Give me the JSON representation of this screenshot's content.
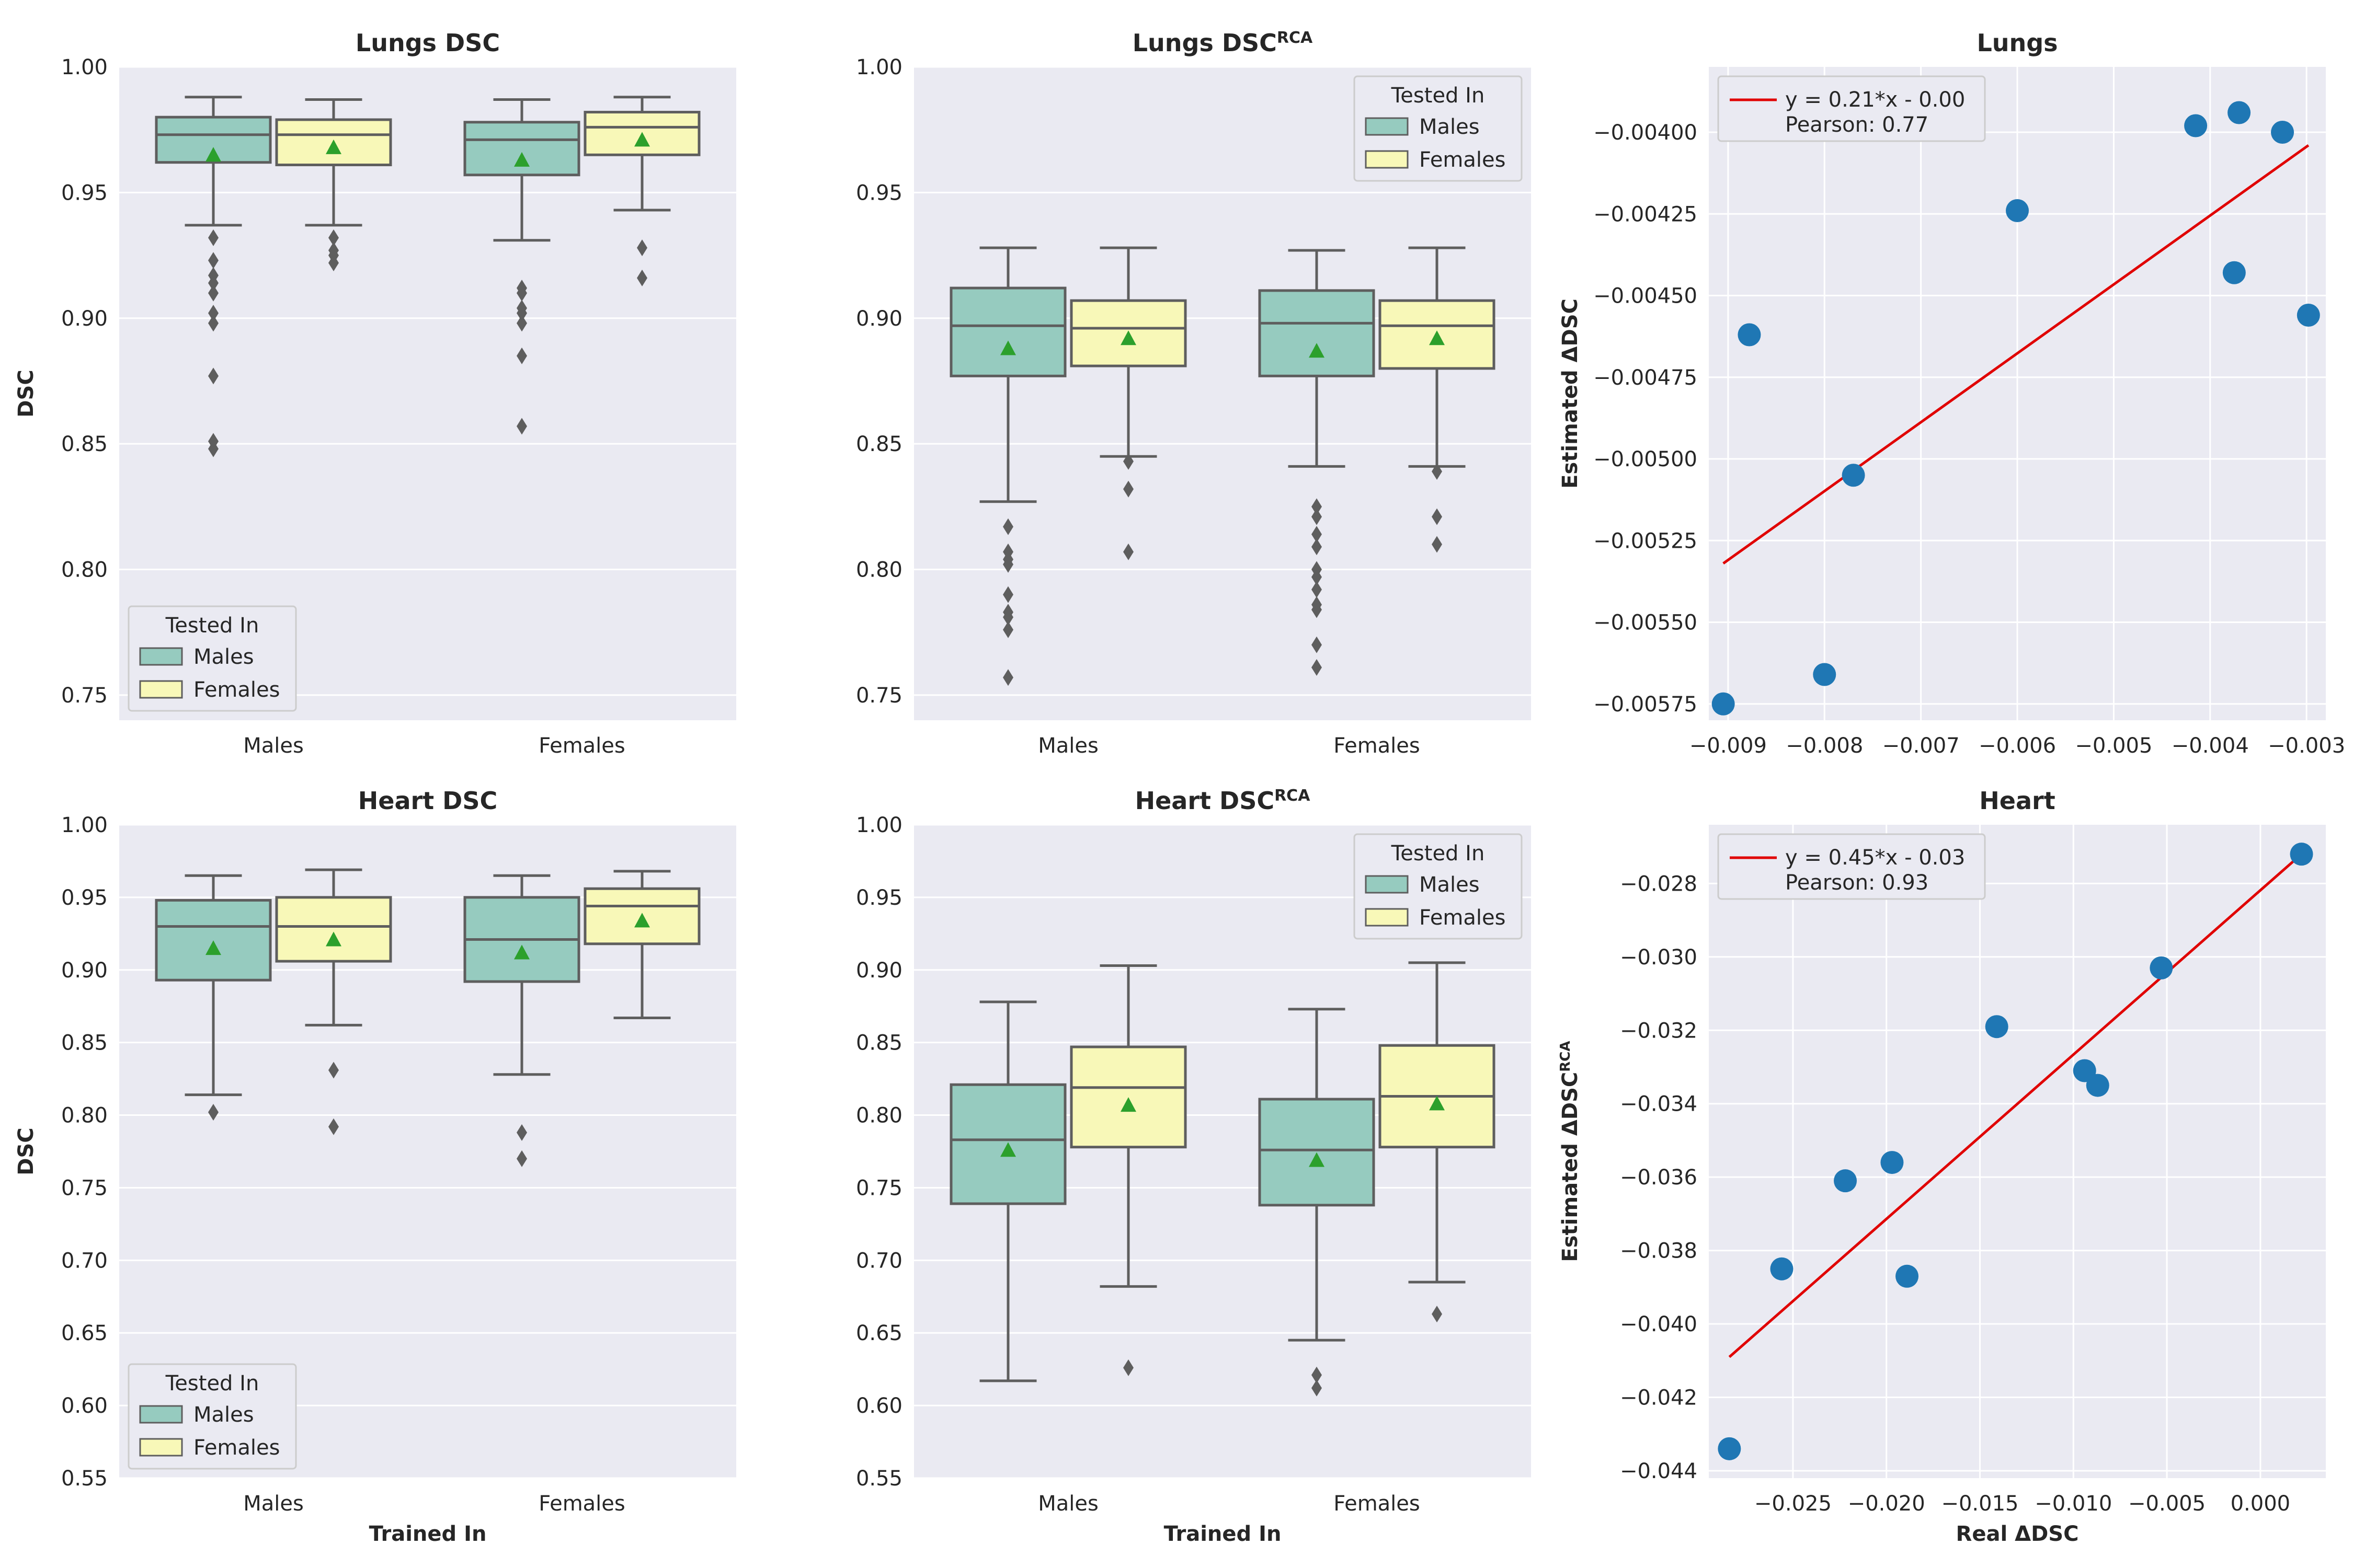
{
  "figure": {
    "colors": {
      "panel_bg": "#eaeaf2",
      "grid": "#ffffff",
      "males_box": "#96cbbf",
      "females_box": "#f8f8b8",
      "box_edge": "#5e5e5e",
      "mean_marker": "#2ca02c",
      "scatter_point": "#1f77b4",
      "fit_line": "#e00000"
    }
  },
  "chart_data": [
    {
      "id": "lungs_dsc",
      "type": "box",
      "title": "Lungs DSC",
      "title_sup": "",
      "ylabel": "DSC",
      "xlabel": "",
      "ylim": [
        0.74,
        1.0
      ],
      "yticks": [
        "0.75",
        "0.80",
        "0.85",
        "0.90",
        "0.95",
        "1.00"
      ],
      "categories": [
        "Males",
        "Females"
      ],
      "legend": {
        "title": "Tested In",
        "entries": [
          "Males",
          "Females"
        ],
        "position": "lower-left"
      },
      "groups": [
        {
          "category": "Males",
          "tested": "Males",
          "whisker_low": 0.937,
          "q1": 0.962,
          "median": 0.973,
          "q3": 0.98,
          "whisker_high": 0.988,
          "mean": 0.965,
          "outliers": [
            0.932,
            0.923,
            0.917,
            0.914,
            0.91,
            0.902,
            0.898,
            0.877,
            0.851,
            0.848
          ]
        },
        {
          "category": "Males",
          "tested": "Females",
          "whisker_low": 0.937,
          "q1": 0.961,
          "median": 0.973,
          "q3": 0.979,
          "whisker_high": 0.987,
          "mean": 0.968,
          "outliers": [
            0.932,
            0.927,
            0.925,
            0.922
          ]
        },
        {
          "category": "Females",
          "tested": "Males",
          "whisker_low": 0.931,
          "q1": 0.957,
          "median": 0.971,
          "q3": 0.978,
          "whisker_high": 0.987,
          "mean": 0.963,
          "outliers": [
            0.912,
            0.91,
            0.904,
            0.902,
            0.898,
            0.885,
            0.857
          ]
        },
        {
          "category": "Females",
          "tested": "Females",
          "whisker_low": 0.943,
          "q1": 0.965,
          "median": 0.976,
          "q3": 0.982,
          "whisker_high": 0.988,
          "mean": 0.971,
          "outliers": [
            0.928,
            0.916
          ]
        }
      ]
    },
    {
      "id": "lungs_dsc_rca",
      "type": "box",
      "title": "Lungs DSC",
      "title_sup": "RCA",
      "ylabel": "",
      "xlabel": "",
      "ylim": [
        0.74,
        1.0
      ],
      "yticks": [
        "0.75",
        "0.80",
        "0.85",
        "0.90",
        "0.95",
        "1.00"
      ],
      "categories": [
        "Males",
        "Females"
      ],
      "legend": {
        "title": "Tested In",
        "entries": [
          "Males",
          "Females"
        ],
        "position": "upper-right"
      },
      "groups": [
        {
          "category": "Males",
          "tested": "Males",
          "whisker_low": 0.827,
          "q1": 0.877,
          "median": 0.897,
          "q3": 0.912,
          "whisker_high": 0.928,
          "mean": 0.888,
          "outliers": [
            0.817,
            0.807,
            0.804,
            0.802,
            0.79,
            0.783,
            0.781,
            0.776,
            0.757
          ]
        },
        {
          "category": "Males",
          "tested": "Females",
          "whisker_low": 0.845,
          "q1": 0.881,
          "median": 0.896,
          "q3": 0.907,
          "whisker_high": 0.928,
          "mean": 0.892,
          "outliers": [
            0.843,
            0.832,
            0.807
          ]
        },
        {
          "category": "Females",
          "tested": "Males",
          "whisker_low": 0.841,
          "q1": 0.877,
          "median": 0.898,
          "q3": 0.911,
          "whisker_high": 0.927,
          "mean": 0.887,
          "outliers": [
            0.825,
            0.821,
            0.814,
            0.809,
            0.8,
            0.797,
            0.792,
            0.786,
            0.784,
            0.77,
            0.761
          ]
        },
        {
          "category": "Females",
          "tested": "Females",
          "whisker_low": 0.841,
          "q1": 0.88,
          "median": 0.897,
          "q3": 0.907,
          "whisker_high": 0.928,
          "mean": 0.892,
          "outliers": [
            0.839,
            0.821,
            0.81
          ]
        }
      ]
    },
    {
      "id": "lungs_scatter",
      "type": "scatter",
      "title": "Lungs",
      "title_sup": "",
      "xlabel": "",
      "ylabel": "Estimated ΔDSC",
      "ylabel_sup": "",
      "xlim": [
        -0.0092,
        -0.0028
      ],
      "ylim": [
        -0.0058,
        -0.0038
      ],
      "xticks": [
        -0.009,
        -0.008,
        -0.007,
        -0.006,
        -0.005,
        -0.004,
        -0.003
      ],
      "xtick_labels": [
        "−0.009",
        "−0.008",
        "−0.007",
        "−0.006",
        "−0.005",
        "−0.004",
        "−0.003"
      ],
      "yticks": [
        -0.00575,
        -0.0055,
        -0.00525,
        -0.005,
        -0.00475,
        -0.0045,
        -0.00425,
        -0.004
      ],
      "ytick_labels": [
        "−0.00575",
        "−0.00550",
        "−0.00525",
        "−0.00500",
        "−0.00475",
        "−0.00450",
        "−0.00425",
        "−0.00400"
      ],
      "legend": {
        "entries": [
          "y = 0.21*x - 0.00",
          "Pearson: 0.77"
        ],
        "position": "upper-left"
      },
      "points": [
        {
          "x": -0.00905,
          "y": -0.00575
        },
        {
          "x": -0.00878,
          "y": -0.00462
        },
        {
          "x": -0.008,
          "y": -0.00566
        },
        {
          "x": -0.0077,
          "y": -0.00505
        },
        {
          "x": -0.006,
          "y": -0.00424
        },
        {
          "x": -0.00415,
          "y": -0.00398
        },
        {
          "x": -0.0037,
          "y": -0.00394
        },
        {
          "x": -0.00375,
          "y": -0.00443
        },
        {
          "x": -0.00325,
          "y": -0.004
        },
        {
          "x": -0.00298,
          "y": -0.00456
        }
      ],
      "fit_line": {
        "x": [
          -0.00905,
          -0.00298
        ],
        "y": [
          -0.00532,
          -0.00404
        ]
      }
    },
    {
      "id": "heart_dsc",
      "type": "box",
      "title": "Heart DSC",
      "title_sup": "",
      "ylabel": "DSC",
      "xlabel": "Trained In",
      "ylim": [
        0.55,
        1.0
      ],
      "yticks": [
        "0.55",
        "0.60",
        "0.65",
        "0.70",
        "0.75",
        "0.80",
        "0.85",
        "0.90",
        "0.95",
        "1.00"
      ],
      "categories": [
        "Males",
        "Females"
      ],
      "legend": {
        "title": "Tested In",
        "entries": [
          "Males",
          "Females"
        ],
        "position": "lower-left"
      },
      "groups": [
        {
          "category": "Males",
          "tested": "Males",
          "whisker_low": 0.814,
          "q1": 0.893,
          "median": 0.93,
          "q3": 0.948,
          "whisker_high": 0.965,
          "mean": 0.915,
          "outliers": [
            0.802
          ]
        },
        {
          "category": "Males",
          "tested": "Females",
          "whisker_low": 0.862,
          "q1": 0.906,
          "median": 0.93,
          "q3": 0.95,
          "whisker_high": 0.969,
          "mean": 0.921,
          "outliers": [
            0.831,
            0.792
          ]
        },
        {
          "category": "Females",
          "tested": "Males",
          "whisker_low": 0.828,
          "q1": 0.892,
          "median": 0.921,
          "q3": 0.95,
          "whisker_high": 0.965,
          "mean": 0.912,
          "outliers": [
            0.788,
            0.77
          ]
        },
        {
          "category": "Females",
          "tested": "Females",
          "whisker_low": 0.867,
          "q1": 0.918,
          "median": 0.944,
          "q3": 0.956,
          "whisker_high": 0.968,
          "mean": 0.934,
          "outliers": []
        }
      ]
    },
    {
      "id": "heart_dsc_rca",
      "type": "box",
      "title": "Heart DSC",
      "title_sup": "RCA",
      "ylabel": "",
      "xlabel": "Trained In",
      "ylim": [
        0.55,
        1.0
      ],
      "yticks": [
        "0.55",
        "0.60",
        "0.65",
        "0.70",
        "0.75",
        "0.80",
        "0.85",
        "0.90",
        "0.95",
        "1.00"
      ],
      "categories": [
        "Males",
        "Females"
      ],
      "legend": {
        "title": "Tested In",
        "entries": [
          "Males",
          "Females"
        ],
        "position": "upper-right"
      },
      "groups": [
        {
          "category": "Males",
          "tested": "Males",
          "whisker_low": 0.617,
          "q1": 0.739,
          "median": 0.783,
          "q3": 0.821,
          "whisker_high": 0.878,
          "mean": 0.776,
          "outliers": []
        },
        {
          "category": "Males",
          "tested": "Females",
          "whisker_low": 0.682,
          "q1": 0.778,
          "median": 0.819,
          "q3": 0.847,
          "whisker_high": 0.903,
          "mean": 0.807,
          "outliers": [
            0.626
          ]
        },
        {
          "category": "Females",
          "tested": "Males",
          "whisker_low": 0.645,
          "q1": 0.738,
          "median": 0.776,
          "q3": 0.811,
          "whisker_high": 0.873,
          "mean": 0.769,
          "outliers": [
            0.621,
            0.612
          ]
        },
        {
          "category": "Females",
          "tested": "Females",
          "whisker_low": 0.685,
          "q1": 0.778,
          "median": 0.813,
          "q3": 0.848,
          "whisker_high": 0.905,
          "mean": 0.808,
          "outliers": [
            0.663
          ]
        }
      ]
    },
    {
      "id": "heart_scatter",
      "type": "scatter",
      "title": "Heart",
      "title_sup": "",
      "xlabel": "Real ΔDSC",
      "ylabel": "Estimated ΔDSC",
      "ylabel_sup": "RCA",
      "xlim": [
        -0.0295,
        0.0035
      ],
      "ylim": [
        -0.0442,
        -0.0264
      ],
      "xticks": [
        -0.025,
        -0.02,
        -0.015,
        -0.01,
        -0.005,
        0.0
      ],
      "xtick_labels": [
        "−0.025",
        "−0.020",
        "−0.015",
        "−0.010",
        "−0.005",
        "0.000"
      ],
      "yticks": [
        -0.044,
        -0.042,
        -0.04,
        -0.038,
        -0.036,
        -0.034,
        -0.032,
        -0.03,
        -0.028
      ],
      "ytick_labels": [
        "−0.044",
        "−0.042",
        "−0.040",
        "−0.038",
        "−0.036",
        "−0.034",
        "−0.032",
        "−0.030",
        "−0.028"
      ],
      "legend": {
        "entries": [
          "y = 0.45*x - 0.03",
          "Pearson: 0.93"
        ],
        "position": "upper-left"
      },
      "points": [
        {
          "x": -0.0284,
          "y": -0.0434
        },
        {
          "x": -0.0256,
          "y": -0.0385
        },
        {
          "x": -0.0222,
          "y": -0.0361
        },
        {
          "x": -0.0197,
          "y": -0.0356
        },
        {
          "x": -0.0189,
          "y": -0.0387
        },
        {
          "x": -0.0141,
          "y": -0.0319
        },
        {
          "x": -0.0094,
          "y": -0.0331
        },
        {
          "x": -0.0087,
          "y": -0.0335
        },
        {
          "x": -0.0053,
          "y": -0.0303
        },
        {
          "x": 0.0022,
          "y": -0.0272
        }
      ],
      "fit_line": {
        "x": [
          -0.0284,
          0.0022
        ],
        "y": [
          -0.0409,
          -0.0272
        ]
      }
    }
  ]
}
